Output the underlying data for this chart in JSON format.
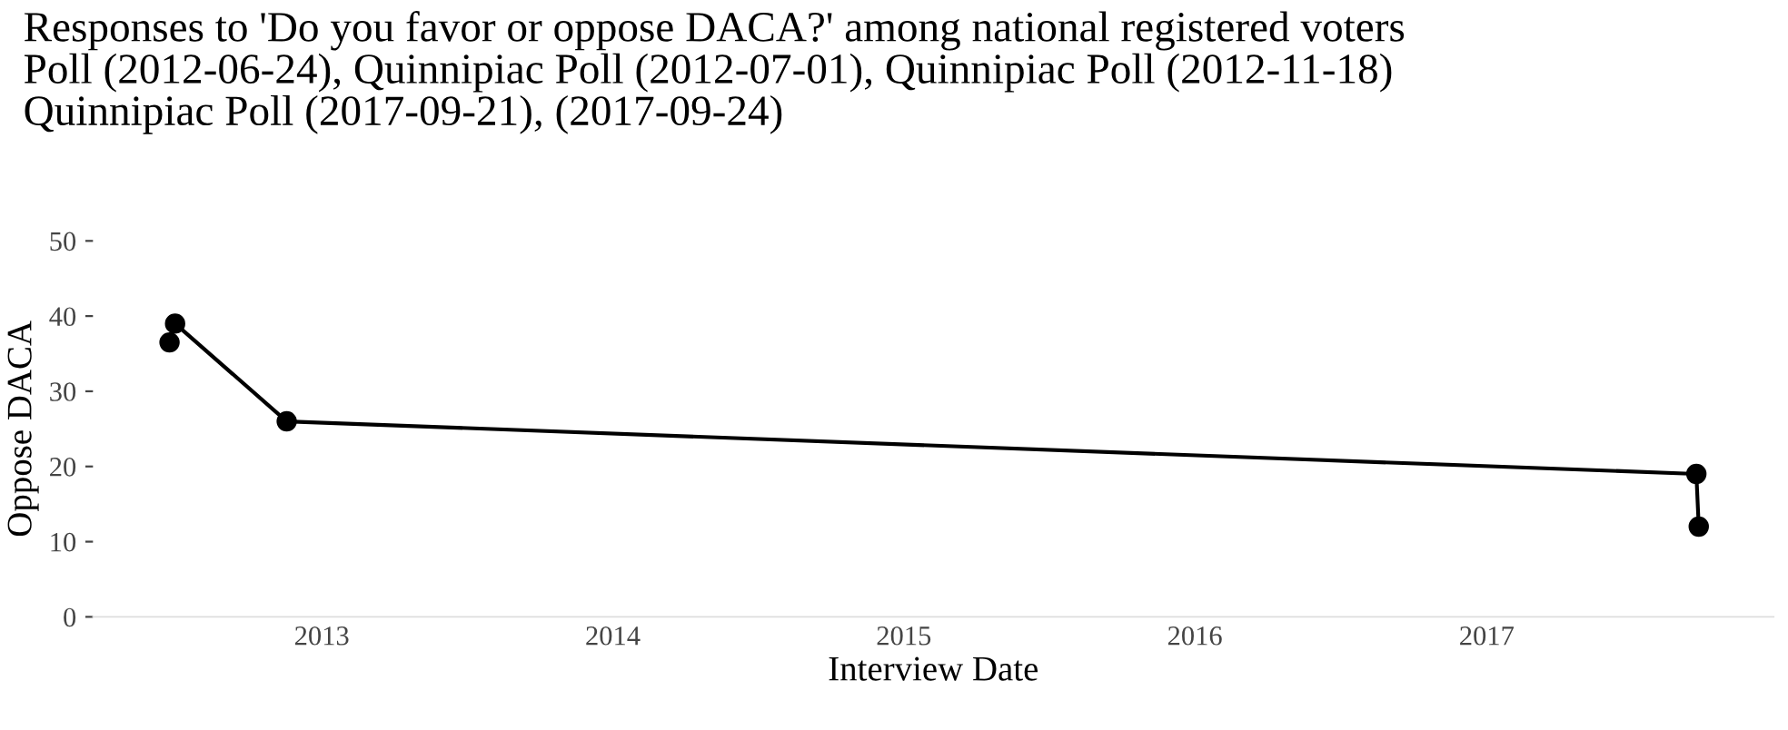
{
  "chart_data": {
    "type": "line",
    "title": "Responses to 'Do you favor or oppose DACA?' among national registered voters\nPoll (2012-06-24), Quinnipiac Poll (2012-07-01), Quinnipiac Poll (2012-11-18)\nQuinnipiac Poll (2017-09-21), (2017-09-24)",
    "xlabel": "Interview Date",
    "ylabel": "Oppose DACA",
    "x": [
      "2012-06-24",
      "2012-07-01",
      "2012-11-18",
      "2017-09-21",
      "2017-09-24"
    ],
    "series": [
      {
        "color": "#000000",
        "values": [
          36.5,
          39,
          26,
          19,
          12
        ]
      }
    ],
    "marker": "circle",
    "line_style": "solid",
    "grid": false,
    "legend": false,
    "xlim": [
      "2012-03-20",
      "2017-12-27"
    ],
    "xticks": [
      {
        "value": "2013-01-01",
        "label": "2013"
      },
      {
        "value": "2014-01-01",
        "label": "2014"
      },
      {
        "value": "2015-01-01",
        "label": "2015"
      },
      {
        "value": "2016-01-01",
        "label": "2016"
      },
      {
        "value": "2017-01-01",
        "label": "2017"
      }
    ],
    "ylim": [
      0,
      50
    ],
    "yticks": [
      0,
      10,
      20,
      30,
      40,
      50
    ]
  }
}
